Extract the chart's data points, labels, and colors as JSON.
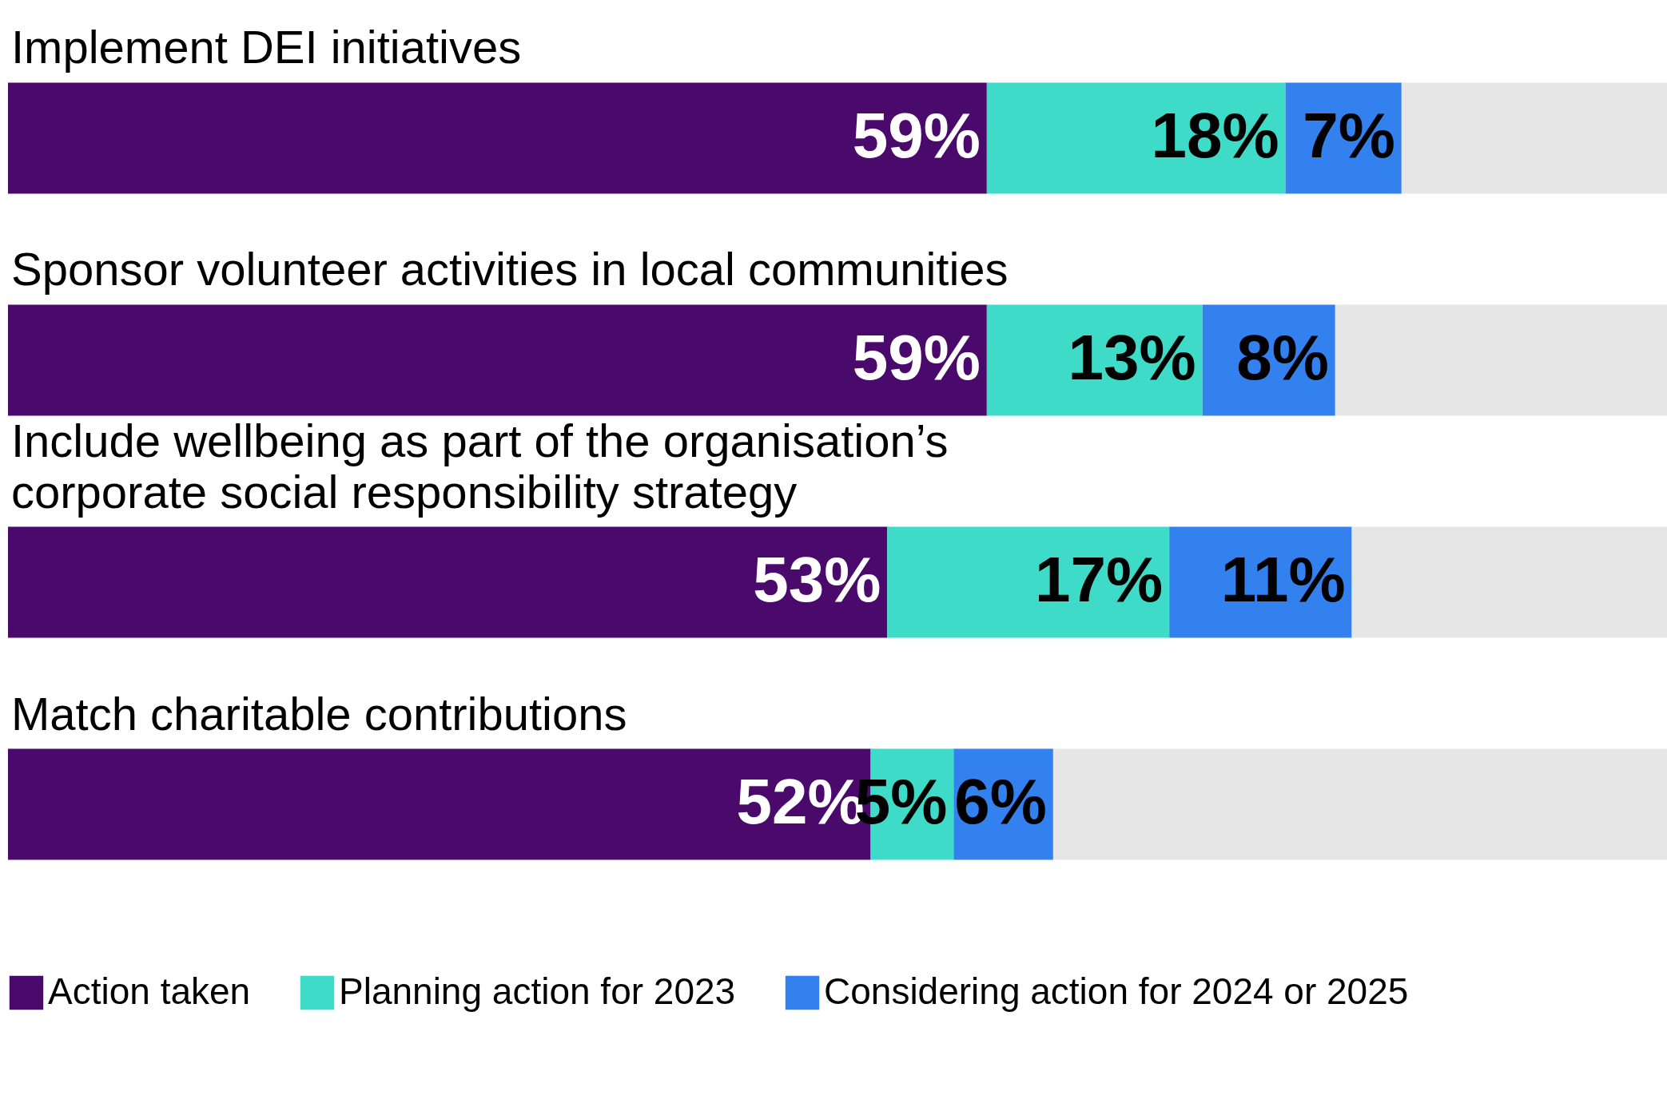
{
  "chart_data": {
    "type": "bar",
    "orientation": "horizontal",
    "stacked": true,
    "xlim": [
      0,
      100
    ],
    "tick_labels": false,
    "grid": false,
    "legend": "bottom left",
    "categories": [
      "Implement DEI initiatives",
      "Sponsor volunteer activities in local communities",
      "Include wellbeing as part of the organisation’s\ncorporate social responsibility strategy",
      "Match charitable contributions"
    ],
    "series": [
      {
        "name": "Action taken",
        "color": "#4a0a6b",
        "values": [
          59,
          59,
          53,
          52
        ],
        "value_labels": [
          "59%",
          "59%",
          "53%",
          "52%"
        ]
      },
      {
        "name": "Planning action for 2023",
        "color": "#3ddbc8",
        "values": [
          18,
          13,
          17,
          5
        ],
        "value_labels": [
          "18%",
          "13%",
          "17%",
          "5%"
        ]
      },
      {
        "name": "Considering action for 2024 or 2025",
        "color": "#3381ee",
        "values": [
          7,
          8,
          11,
          6
        ],
        "value_labels": [
          "7%",
          "8%",
          "11%",
          "6%"
        ]
      },
      {
        "color": "#e6e6e6",
        "values": [
          16,
          20,
          19,
          37
        ]
      }
    ]
  }
}
